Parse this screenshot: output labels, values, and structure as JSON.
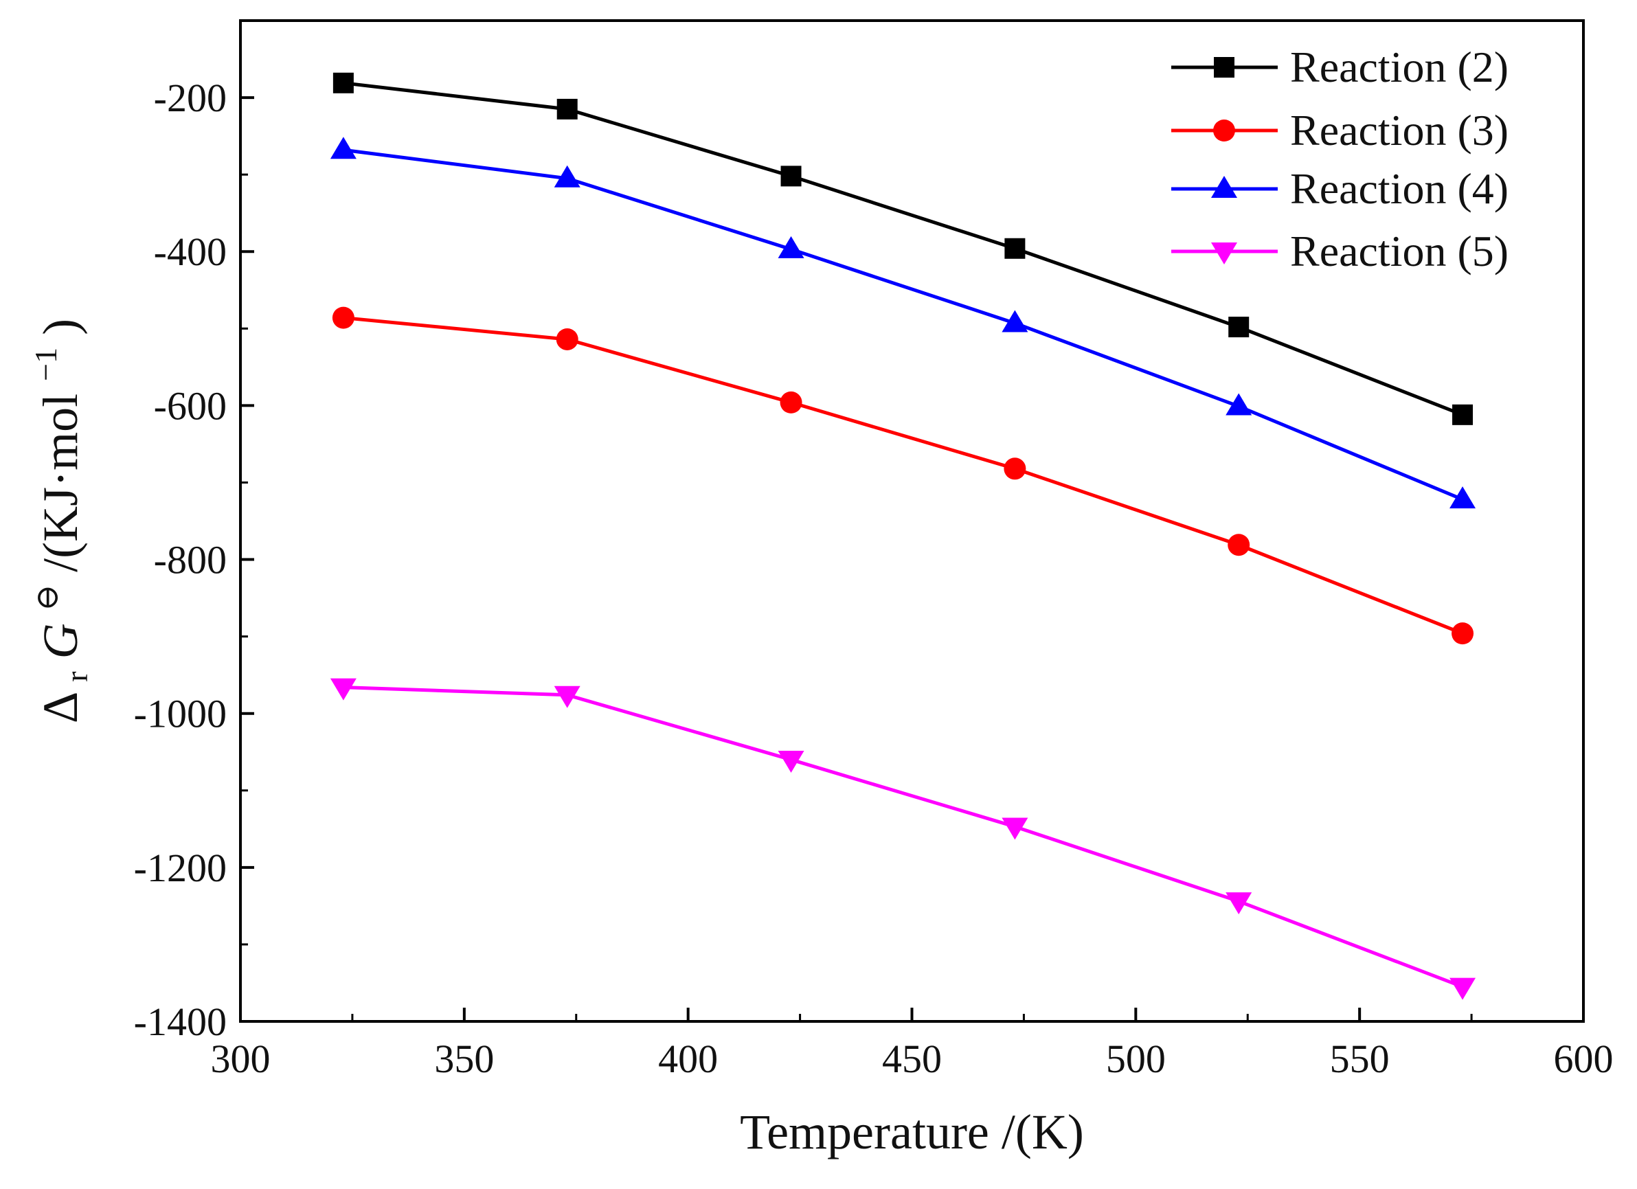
{
  "chart_data": {
    "type": "line",
    "title": "",
    "xlabel": "Temperature /(K)",
    "ylabel": {
      "delta": "Δ",
      "delta_subscript": "r",
      "symbol": "G",
      "standard_state_symbol": "⊖",
      "units_prefix": " /(KJ·mol",
      "units_exponent": "−1",
      "units_suffix": ")"
    },
    "xlim": [
      300,
      600
    ],
    "ylim": [
      -1400,
      -100
    ],
    "x_ticks": [
      300,
      350,
      400,
      450,
      500,
      550,
      600
    ],
    "y_ticks": [
      -200,
      -400,
      -600,
      -800,
      -1000,
      -1200,
      -1400
    ],
    "grid": false,
    "legend_position": "top-right",
    "x": [
      323,
      373,
      423,
      473,
      523,
      573
    ],
    "series": [
      {
        "name": "Reaction (2)",
        "color": "#000000",
        "marker": "square",
        "values": [
          -181,
          -215,
          -302,
          -396,
          -498,
          -612
        ]
      },
      {
        "name": "Reaction (3)",
        "color": "#ff0000",
        "marker": "circle",
        "values": [
          -486,
          -514,
          -596,
          -682,
          -781,
          -896
        ]
      },
      {
        "name": "Reaction (4)",
        "color": "#0000ff",
        "marker": "triangle-up",
        "values": [
          -268,
          -305,
          -397,
          -493,
          -601,
          -722
        ]
      },
      {
        "name": "Reaction (5)",
        "color": "#ff00ff",
        "marker": "triangle-down",
        "values": [
          -966,
          -976,
          -1060,
          -1147,
          -1244,
          -1355
        ]
      }
    ]
  }
}
